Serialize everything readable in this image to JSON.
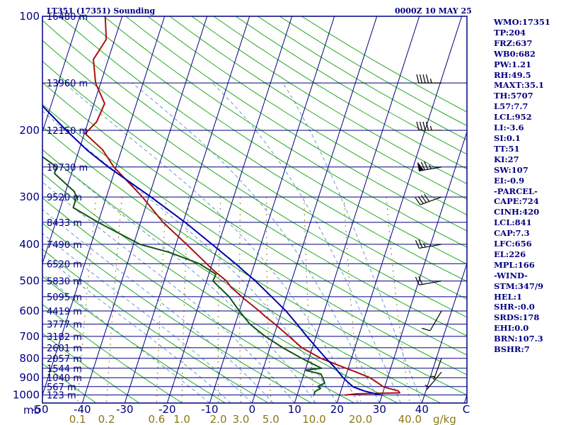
{
  "header": {
    "title_left": "LT351 (17351) Sounding",
    "title_right": "0000Z 10 MAY 25"
  },
  "indices": [
    "WMO:17351",
    "TP:204",
    "FRZ:637",
    "WB0:682",
    "PW:1.21",
    "RH:49.5",
    "MAXT:35.1",
    "TH:5707",
    "L57:7.7",
    "LCL:952",
    "LI:-3.6",
    "SI:0.1",
    "TT:51",
    "KI:27",
    "SW:107",
    "EI:-0.9",
    "-PARCEL-",
    "CAPE:724",
    "CINH:420",
    "LCL:841",
    "CAP:7.3",
    "LFC:656",
    "EL:226",
    "MPL:166",
    "-WIND-",
    "STM:347/9",
    "HEL:1",
    "SHR-:0.0",
    "SRDS:178",
    "EHI:0.0",
    "BRN:107.3",
    "BSHR:7"
  ],
  "colors": {
    "frame": "#000080",
    "isobar": "#000080",
    "isotherm": "#000080",
    "dry_adiabat": "#22aa22",
    "moist_adiabat": "#6699cc",
    "mixing_ratio": "#8B7A1A",
    "temperature": "#aa1111",
    "dewpoint": "#115511",
    "parcel": "#0000aa",
    "wind": "#000000"
  },
  "chart_data": {
    "type": "line",
    "title": "LT351 (17351) Sounding",
    "pressure_axis": {
      "unit": "mb",
      "ticks": [
        100,
        200,
        300,
        400,
        500,
        600,
        700,
        800,
        900,
        1000
      ],
      "range": [
        1050,
        100
      ],
      "scale": "log"
    },
    "temperature_axis": {
      "ticks": [
        -50,
        -40,
        -30,
        -20,
        -10,
        0,
        10,
        20,
        30,
        40
      ],
      "tick_labels": [
        "-50",
        "-40",
        "-30",
        "-20",
        "-10",
        "0",
        "10",
        "20",
        "30",
        "40"
      ],
      "end_label": "C",
      "range": [
        -50,
        50
      ],
      "skewed": true
    },
    "mixing_ratio_axis": {
      "unit": "g/kg",
      "ticks": [
        0.1,
        0.2,
        0.6,
        1.0,
        2.0,
        3.0,
        5.0,
        10.0,
        20.0,
        40.0
      ],
      "tick_labels": [
        "0.1",
        "0.2",
        "0.6",
        "1.0",
        "2.0",
        "3.0",
        "5.0",
        "10.0",
        "20.0",
        "40.0"
      ]
    },
    "height_labels": [
      {
        "p": 100,
        "label": "16480 m"
      },
      {
        "p": 150,
        "label": "13960 m"
      },
      {
        "p": 200,
        "label": "12150 m"
      },
      {
        "p": 250,
        "label": "10730 m"
      },
      {
        "p": 300,
        "label": "9520 m"
      },
      {
        "p": 350,
        "label": "8433 m"
      },
      {
        "p": 400,
        "label": "7490 m"
      },
      {
        "p": 450,
        "label": "6520 m"
      },
      {
        "p": 500,
        "label": "5830 m"
      },
      {
        "p": 550,
        "label": "5095 m"
      },
      {
        "p": 600,
        "label": "4419 m"
      },
      {
        "p": 650,
        "label": "3777 m"
      },
      {
        "p": 700,
        "label": "3182 m"
      },
      {
        "p": 750,
        "label": "2601 m"
      },
      {
        "p": 800,
        "label": "2057 m"
      },
      {
        "p": 850,
        "label": "1544 m"
      },
      {
        "p": 900,
        "label": "1040 m"
      },
      {
        "p": 950,
        "label": "567 m"
      },
      {
        "p": 1000,
        "label": "123 m"
      }
    ],
    "series": [
      {
        "key": "temperature",
        "points": [
          [
            1000,
            21.2
          ],
          [
            993,
            24
          ],
          [
            987,
            34
          ],
          [
            975,
            33.5
          ],
          [
            960,
            31
          ],
          [
            950,
            29.6
          ],
          [
            925,
            27.8
          ],
          [
            900,
            25.8
          ],
          [
            870,
            22.2
          ],
          [
            850,
            19.5
          ],
          [
            800,
            12.8
          ],
          [
            750,
            7.5
          ],
          [
            700,
            3.6
          ],
          [
            650,
            -0.6
          ],
          [
            620,
            -3.5
          ],
          [
            600,
            -5.3
          ],
          [
            560,
            -9.5
          ],
          [
            520,
            -13.7
          ],
          [
            500,
            -15.3
          ],
          [
            470,
            -19
          ],
          [
            450,
            -21.3
          ],
          [
            400,
            -27.5
          ],
          [
            350,
            -34.7
          ],
          [
            300,
            -41.5
          ],
          [
            250,
            -50.5
          ],
          [
            225,
            -54.5
          ],
          [
            204,
            -59.8
          ],
          [
            190,
            -58
          ],
          [
            170,
            -57.5
          ],
          [
            150,
            -61.2
          ],
          [
            130,
            -63.5
          ],
          [
            115,
            -62
          ],
          [
            100,
            -64
          ]
        ]
      },
      {
        "key": "dewpoint",
        "points": [
          [
            1000,
            14
          ],
          [
            980,
            13.9
          ],
          [
            960,
            15
          ],
          [
            950,
            14.2
          ],
          [
            930,
            15.6
          ],
          [
            900,
            14.7
          ],
          [
            880,
            14
          ],
          [
            860,
            10
          ],
          [
            850,
            13.7
          ],
          [
            800,
            8.3
          ],
          [
            750,
            3
          ],
          [
            700,
            -2
          ],
          [
            650,
            -6.5
          ],
          [
            600,
            -10
          ],
          [
            550,
            -13.5
          ],
          [
            500,
            -18.5
          ],
          [
            480,
            -18.3
          ],
          [
            450,
            -23
          ],
          [
            420,
            -31
          ],
          [
            400,
            -38.5
          ],
          [
            350,
            -50
          ],
          [
            320,
            -57
          ],
          [
            300,
            -57
          ],
          [
            290,
            -58
          ],
          [
            260,
            -64
          ],
          [
            250,
            -64
          ],
          [
            230,
            -69.5
          ]
        ]
      },
      {
        "key": "parcel",
        "points": [
          [
            1000,
            29.6
          ],
          [
            975,
            25.4
          ],
          [
            952,
            22.6
          ],
          [
            925,
            21.0
          ],
          [
            900,
            19.5
          ],
          [
            850,
            17.0
          ],
          [
            841,
            16.5
          ],
          [
            800,
            14.0
          ],
          [
            700,
            7.8
          ],
          [
            656,
            5.0
          ],
          [
            600,
            1.0
          ],
          [
            550,
            -3.5
          ],
          [
            500,
            -8.5
          ],
          [
            450,
            -14.5
          ],
          [
            400,
            -21.5
          ],
          [
            350,
            -29.5
          ],
          [
            300,
            -39.5
          ],
          [
            250,
            -51.8
          ],
          [
            226,
            -58
          ],
          [
            200,
            -64.5
          ],
          [
            150,
            -79
          ],
          [
            120,
            -89.5
          ],
          [
            110,
            -93.5
          ]
        ]
      }
    ],
    "wind_barbs": [
      {
        "p": 150,
        "dir": 270,
        "kt": 45
      },
      {
        "p": 200,
        "dir": 270,
        "kt": 45
      },
      {
        "p": 250,
        "dir": 260,
        "kt": 75
      },
      {
        "p": 300,
        "dir": 250,
        "kt": 40
      },
      {
        "p": 400,
        "dir": 260,
        "kt": 25
      },
      {
        "p": 500,
        "dir": 260,
        "kt": 20
      },
      {
        "p": 600,
        "dir": 210,
        "kt": 10
      },
      {
        "p": 800,
        "dir": 200,
        "kt": 5
      },
      {
        "p": 870,
        "dir": 220,
        "kt": 5
      }
    ]
  }
}
